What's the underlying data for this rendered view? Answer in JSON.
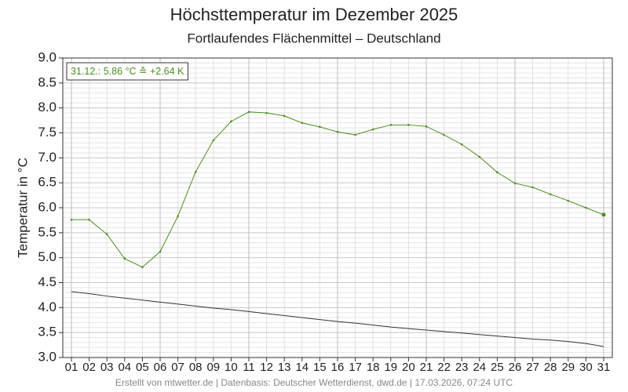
{
  "chart_data": {
    "type": "line",
    "title": "Höchsttemperatur im Dezember 2025",
    "subtitle": "Fortlaufendes Flächenmittel – Deutschland",
    "y_label": "Temperatur in °C",
    "annotation": "31.12.: 5.86 °C ≙ +2.64 K",
    "footer": "Erstellt von mtwetter.de | Datenbasis: Deutscher Wetterdienst, dwd.de | 17.03.2026, 07:24 UTC",
    "categories": [
      "01",
      "02",
      "03",
      "04",
      "05",
      "06",
      "07",
      "08",
      "09",
      "10",
      "11",
      "12",
      "13",
      "14",
      "15",
      "16",
      "17",
      "18",
      "19",
      "20",
      "21",
      "22",
      "23",
      "24",
      "25",
      "26",
      "27",
      "28",
      "29",
      "30",
      "31"
    ],
    "series": [
      {
        "color": "#4b8f1d",
        "markers": true,
        "values": [
          5.76,
          5.76,
          5.47,
          4.98,
          4.81,
          5.12,
          5.83,
          6.72,
          7.35,
          7.73,
          7.92,
          7.9,
          7.84,
          7.7,
          7.62,
          7.52,
          7.46,
          7.57,
          7.66,
          7.66,
          7.63,
          7.46,
          7.27,
          7.02,
          6.71,
          6.49,
          6.41,
          6.27,
          6.14,
          6.0,
          5.86
        ]
      },
      {
        "color": "#333333",
        "markers": false,
        "values": [
          4.32,
          4.28,
          4.23,
          4.19,
          4.15,
          4.11,
          4.07,
          4.03,
          3.99,
          3.96,
          3.92,
          3.88,
          3.84,
          3.8,
          3.76,
          3.72,
          3.69,
          3.65,
          3.61,
          3.58,
          3.55,
          3.52,
          3.49,
          3.46,
          3.43,
          3.4,
          3.37,
          3.35,
          3.32,
          3.28,
          3.22
        ]
      }
    ],
    "ylim": [
      3.0,
      9.0
    ],
    "yticks": [
      {
        "value": 3.0,
        "label": "3.0"
      },
      {
        "value": 3.5,
        "label": "3.5"
      },
      {
        "value": 4.0,
        "label": "4.0"
      },
      {
        "value": 4.5,
        "label": "4.5"
      },
      {
        "value": 5.0,
        "label": "5.0"
      },
      {
        "value": 5.5,
        "label": "5.5"
      },
      {
        "value": 6.0,
        "label": "6.0"
      },
      {
        "value": 6.5,
        "label": "6.5"
      },
      {
        "value": 7.0,
        "label": "7.0"
      },
      {
        "value": 7.5,
        "label": "7.5"
      },
      {
        "value": 8.0,
        "label": "8.0"
      },
      {
        "value": 8.5,
        "label": "8.5"
      },
      {
        "value": 9.0,
        "label": "9.0"
      }
    ],
    "grid": true
  }
}
